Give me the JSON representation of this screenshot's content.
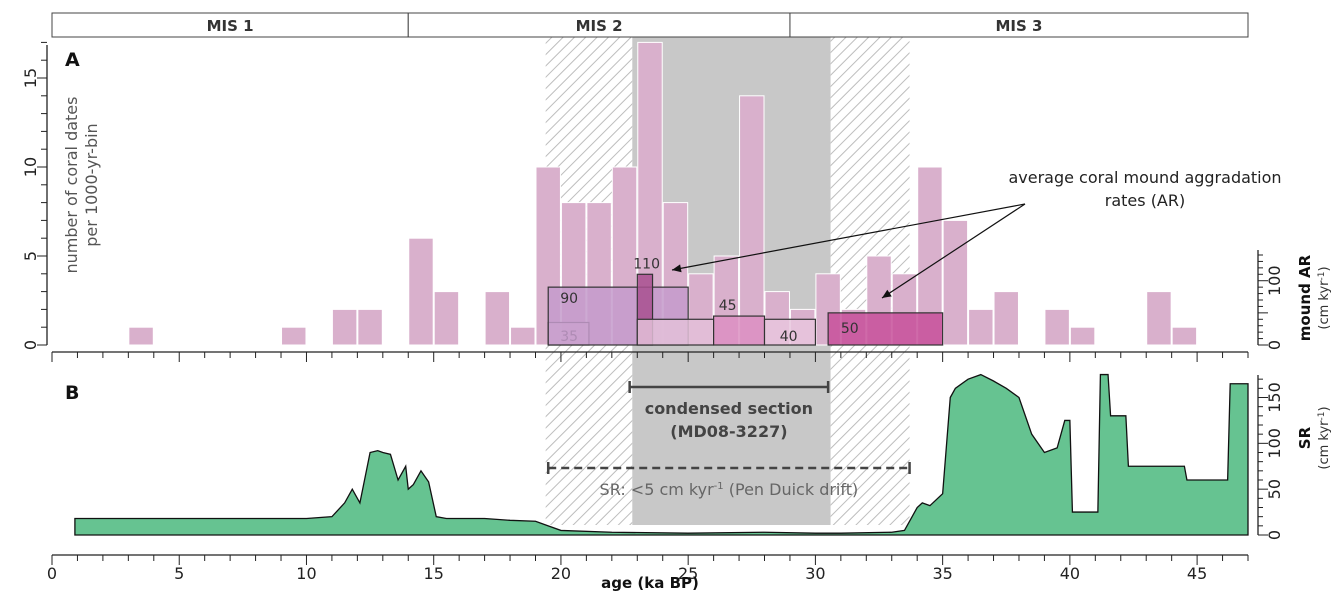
{
  "chart_data": [
    {
      "panel": "A",
      "type": "bar",
      "bin_width_ka": 1,
      "ylabel": "number of coral dates per 1000-yr-bin",
      "ylim": [
        0,
        17.5
      ],
      "yticks": [
        0,
        5,
        10,
        15
      ],
      "bins": [
        {
          "x": 3,
          "value": 1
        },
        {
          "x": 9,
          "value": 1
        },
        {
          "x": 11,
          "value": 2
        },
        {
          "x": 12,
          "value": 2
        },
        {
          "x": 14,
          "value": 6
        },
        {
          "x": 15,
          "value": 3
        },
        {
          "x": 17,
          "value": 3
        },
        {
          "x": 18,
          "value": 1
        },
        {
          "x": 19,
          "value": 10
        },
        {
          "x": 20,
          "value": 8
        },
        {
          "x": 21,
          "value": 8
        },
        {
          "x": 22,
          "value": 10
        },
        {
          "x": 23,
          "value": 17
        },
        {
          "x": 24,
          "value": 8
        },
        {
          "x": 25,
          "value": 4
        },
        {
          "x": 26,
          "value": 5
        },
        {
          "x": 27,
          "value": 14
        },
        {
          "x": 28,
          "value": 3
        },
        {
          "x": 29,
          "value": 2
        },
        {
          "x": 30,
          "value": 4
        },
        {
          "x": 31,
          "value": 2
        },
        {
          "x": 32,
          "value": 5
        },
        {
          "x": 33,
          "value": 4
        },
        {
          "x": 34,
          "value": 10
        },
        {
          "x": 35,
          "value": 7
        },
        {
          "x": 36,
          "value": 2
        },
        {
          "x": 37,
          "value": 3
        },
        {
          "x": 39,
          "value": 2
        },
        {
          "x": 40,
          "value": 1
        },
        {
          "x": 43,
          "value": 3
        },
        {
          "x": 44,
          "value": 1
        }
      ],
      "right_axis": {
        "title": "mound AR",
        "unit": "(cm kyr",
        "unit_sup": "-1",
        "unit_end": ")",
        "ylim": [
          0,
          140
        ],
        "ticks": [
          0,
          100
        ]
      },
      "ar_boxes": [
        {
          "label": "35",
          "x0": 19.5,
          "x1": 21.1,
          "value": 35,
          "color": "#e8c6dd"
        },
        {
          "label": "90",
          "x0": 19.5,
          "x1": 25.0,
          "value": 90,
          "color": "#c49bcb"
        },
        {
          "label": "110",
          "x0": 23.0,
          "x1": 23.6,
          "value": 110,
          "color": "#a8508f"
        },
        {
          "label": "",
          "x0": 23.0,
          "x1": 26.0,
          "value": 40,
          "color": "#e3bfd8"
        },
        {
          "label": "45",
          "x0": 26.0,
          "x1": 28.0,
          "value": 45,
          "color": "#dc8fc2"
        },
        {
          "label": "40",
          "x0": 28.0,
          "x1": 30.0,
          "value": 40,
          "color": "#e8c6dd"
        },
        {
          "label": "50",
          "x0": 30.5,
          "x1": 35.0,
          "value": 50,
          "color": "#c7509a"
        }
      ],
      "annotation": "average coral mound aggradation rates (AR)"
    },
    {
      "panel": "B",
      "type": "area",
      "color": "#66c391",
      "right_axis": {
        "title": "SR",
        "unit": "(cm kyr",
        "unit_sup": "-1",
        "unit_end": ")",
        "ylim": [
          0,
          180
        ],
        "ticks": [
          0,
          50,
          100,
          150
        ]
      },
      "x": [
        0.9,
        5,
        10,
        11,
        11.5,
        11.8,
        12.1,
        12.5,
        12.8,
        13,
        13.3,
        13.6,
        13.9,
        14,
        14.2,
        14.5,
        14.8,
        15.1,
        15.5,
        17,
        18,
        19,
        19.5,
        20,
        22,
        25,
        28,
        30,
        31,
        33,
        33.5,
        33.8,
        34,
        34.2,
        34.5,
        35,
        35.3,
        35.5,
        36,
        36.5,
        37,
        37.5,
        38,
        38.5,
        39,
        39.5,
        39.8,
        40,
        40.1,
        41.1,
        41.2,
        41.5,
        41.6,
        42.2,
        42.3,
        44.5,
        44.6,
        46.2,
        46.3,
        47
      ],
      "y": [
        18,
        18,
        18,
        20,
        35,
        50,
        35,
        90,
        92,
        90,
        88,
        60,
        75,
        50,
        55,
        70,
        58,
        20,
        18,
        18,
        16,
        15,
        10,
        5,
        3,
        2,
        3,
        2,
        2,
        3,
        5,
        20,
        30,
        35,
        32,
        45,
        150,
        160,
        170,
        175,
        168,
        160,
        150,
        110,
        90,
        95,
        125,
        125,
        25,
        25,
        175,
        175,
        130,
        130,
        75,
        75,
        60,
        60,
        165,
        165
      ],
      "marker_condensed": {
        "x0": 22.7,
        "x1": 30.5,
        "label_line1": "condensed section",
        "label_line2": "(MD08-3227)"
      },
      "marker_sr": {
        "x0": 19.5,
        "x1": 33.7,
        "label": "SR: <5 cm kyr",
        "label_sup": "-1",
        "label_end": " (Pen Duick drift)"
      }
    }
  ],
  "x_axis": {
    "title": "age (ka BP)",
    "range": [
      0,
      47
    ],
    "ticks": [
      0,
      5,
      10,
      15,
      20,
      25,
      30,
      35,
      40,
      45
    ]
  },
  "mis": [
    {
      "label": "MIS 1",
      "x0": 0,
      "x1": 14
    },
    {
      "label": "MIS 2",
      "x0": 14,
      "x1": 29
    },
    {
      "label": "MIS 3",
      "x0": 29,
      "x1": 47
    }
  ],
  "shading": {
    "gray": [
      22.8,
      30.6
    ],
    "hatched": [
      [
        19.4,
        22.8
      ],
      [
        30.6,
        33.7
      ]
    ]
  },
  "panel_letters": {
    "a": "A",
    "b": "B"
  },
  "colors": {
    "bars": "#d9b0cc",
    "area": "#66c391",
    "gray": "#c8c8c8"
  }
}
